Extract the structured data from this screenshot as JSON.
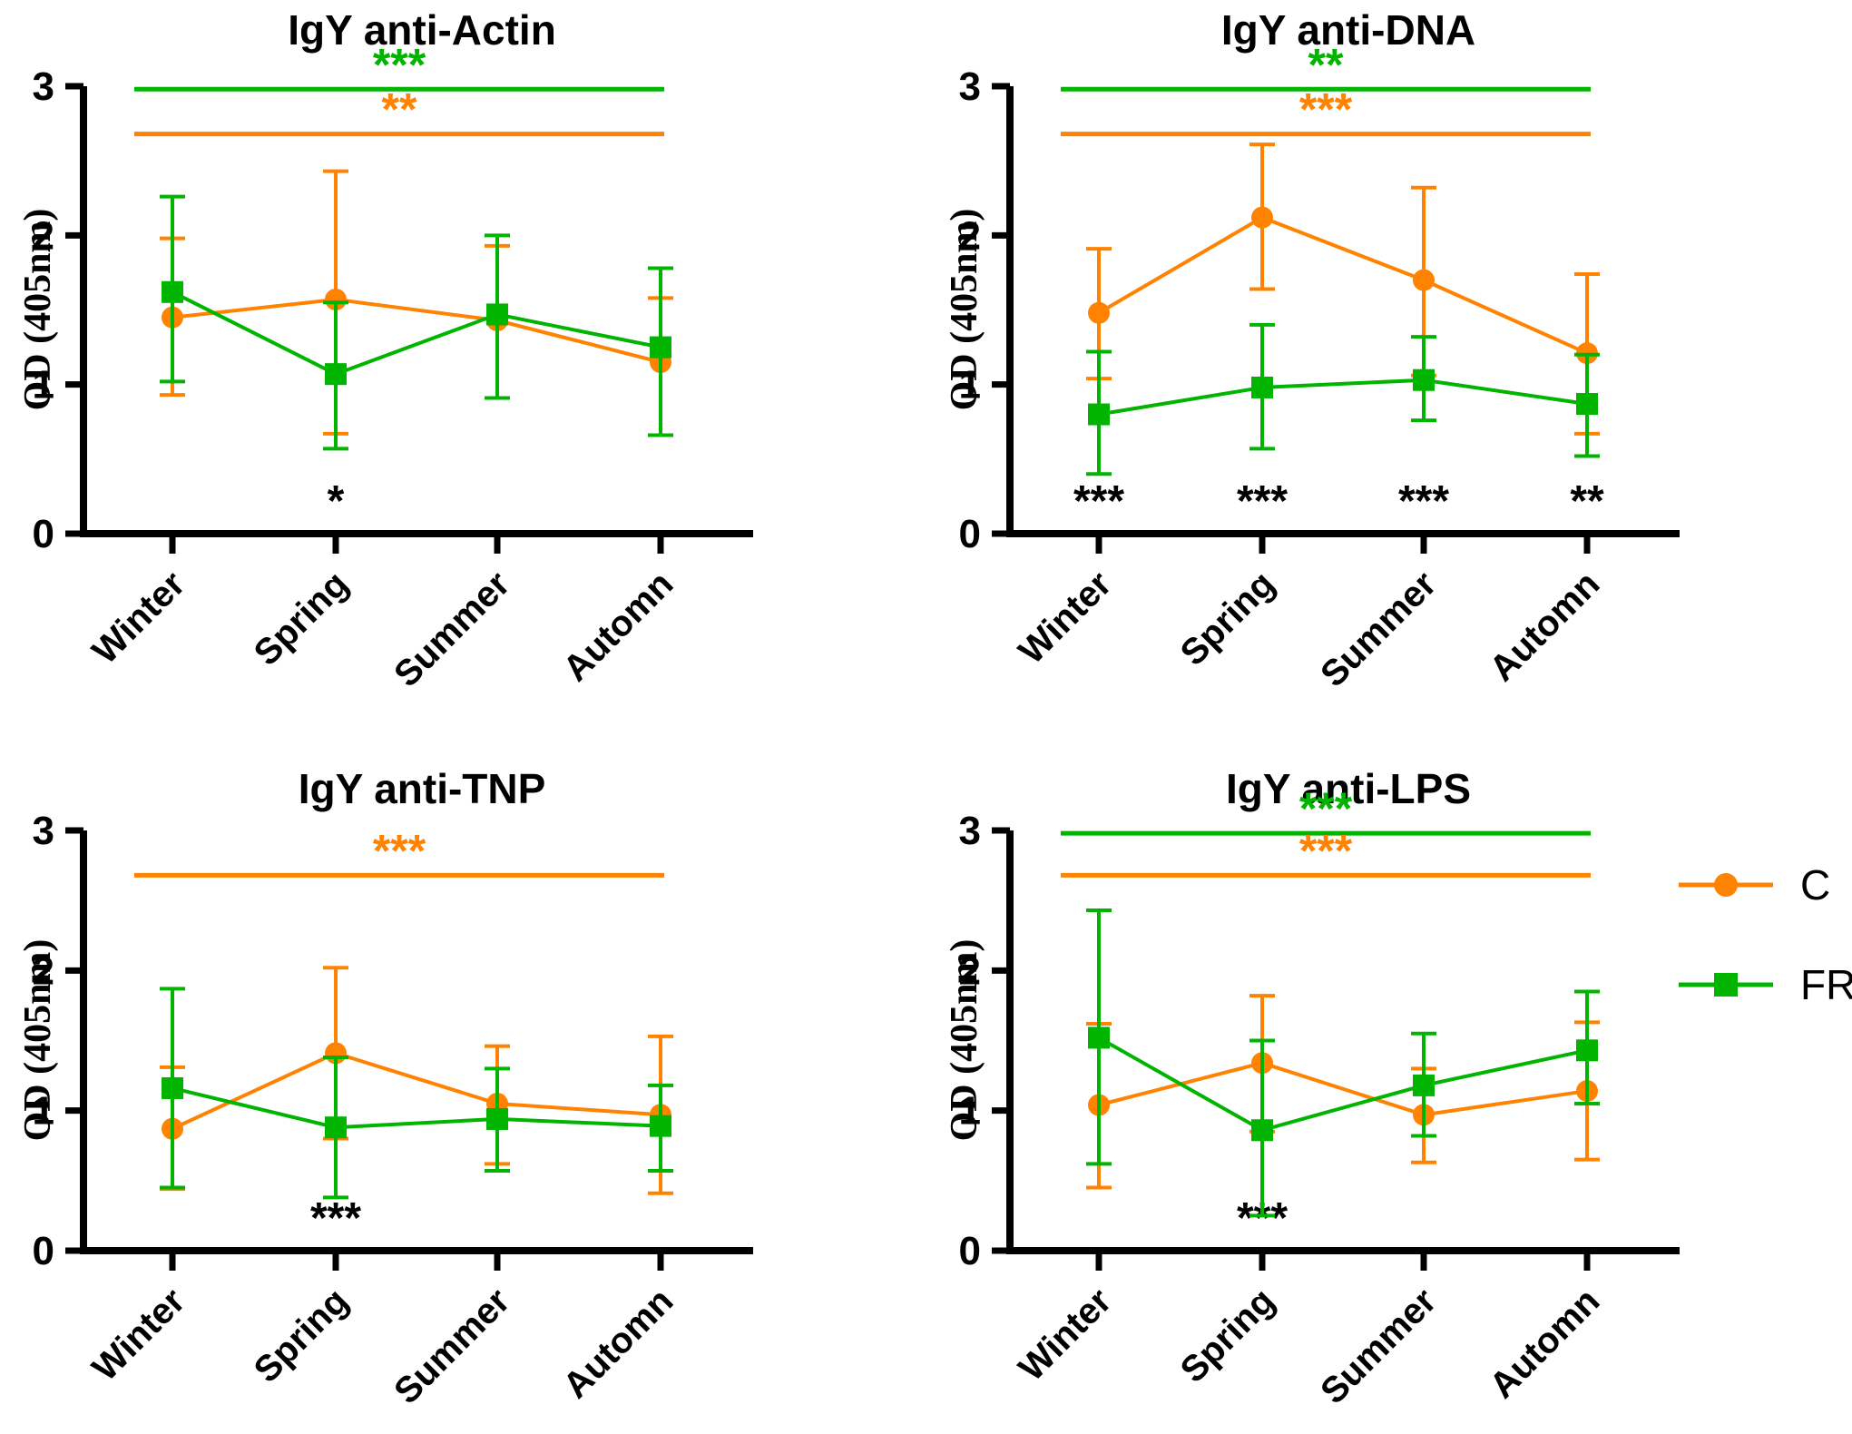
{
  "figure": {
    "background": "#ffffff",
    "accent_orange": "#FF8200",
    "accent_green": "#00B400",
    "legend": {
      "items": [
        {
          "label": "C",
          "color": "#FF8200",
          "marker": "circle"
        },
        {
          "label": "FR",
          "color": "#00B400",
          "marker": "square"
        }
      ]
    }
  },
  "chart_data": [
    {
      "type": "line",
      "title": "IgY anti-Actin",
      "ylabel": "OD (405nm)",
      "ylim": [
        0,
        3
      ],
      "yticks": [
        0,
        1,
        2,
        3
      ],
      "categories": [
        "Winter",
        "Spring",
        "Summer",
        "Automn"
      ],
      "series": [
        {
          "name": "C",
          "color": "#FF8200",
          "marker": "circle",
          "values": [
            1.45,
            1.57,
            1.43,
            1.15
          ],
          "err_lo": [
            0.93,
            0.67,
            0.91,
            0.66
          ],
          "err_hi": [
            1.98,
            2.43,
            1.93,
            1.58
          ]
        },
        {
          "name": "FR",
          "color": "#00B400",
          "marker": "square",
          "values": [
            1.62,
            1.07,
            1.47,
            1.25
          ],
          "err_lo": [
            1.02,
            0.57,
            0.91,
            0.66
          ],
          "err_hi": [
            2.26,
            1.55,
            2.0,
            1.78
          ]
        }
      ],
      "sig_lines": [
        {
          "color": "#00B400",
          "label": "***",
          "y": 2.98
        },
        {
          "color": "#FF8200",
          "label": "**",
          "y": 2.68
        }
      ],
      "point_marks": [
        {
          "category": "Spring",
          "label": "*"
        }
      ]
    },
    {
      "type": "line",
      "title": "IgY anti-DNA",
      "ylabel": "OD (405nm)",
      "ylim": [
        0,
        3
      ],
      "yticks": [
        0,
        1,
        2,
        3
      ],
      "categories": [
        "Winter",
        "Spring",
        "Summer",
        "Automn"
      ],
      "series": [
        {
          "name": "C",
          "color": "#FF8200",
          "marker": "circle",
          "values": [
            1.48,
            2.12,
            1.7,
            1.21
          ],
          "err_lo": [
            1.04,
            1.64,
            1.06,
            0.67
          ],
          "err_hi": [
            1.91,
            2.61,
            2.32,
            1.74
          ]
        },
        {
          "name": "FR",
          "color": "#00B400",
          "marker": "square",
          "values": [
            0.8,
            0.98,
            1.03,
            0.87
          ],
          "err_lo": [
            0.4,
            0.57,
            0.76,
            0.52
          ],
          "err_hi": [
            1.22,
            1.4,
            1.32,
            1.2
          ]
        }
      ],
      "sig_lines": [
        {
          "color": "#00B400",
          "label": "**",
          "y": 2.98
        },
        {
          "color": "#FF8200",
          "label": "***",
          "y": 2.68
        }
      ],
      "point_marks": [
        {
          "category": "Winter",
          "label": "***"
        },
        {
          "category": "Spring",
          "label": "***"
        },
        {
          "category": "Summer",
          "label": "***"
        },
        {
          "category": "Automn",
          "label": "**"
        }
      ]
    },
    {
      "type": "line",
      "title": "IgY anti-TNP",
      "ylabel": "OD (405nm)",
      "ylim": [
        0,
        3
      ],
      "yticks": [
        0,
        1,
        2,
        3
      ],
      "categories": [
        "Winter",
        "Spring",
        "Summer",
        "Automn"
      ],
      "series": [
        {
          "name": "C",
          "color": "#FF8200",
          "marker": "circle",
          "values": [
            0.87,
            1.41,
            1.05,
            0.97
          ],
          "err_lo": [
            0.44,
            0.8,
            0.62,
            0.41
          ],
          "err_hi": [
            1.31,
            2.02,
            1.46,
            1.53
          ]
        },
        {
          "name": "FR",
          "color": "#00B400",
          "marker": "square",
          "values": [
            1.16,
            0.88,
            0.94,
            0.89
          ],
          "err_lo": [
            0.45,
            0.38,
            0.57,
            0.57
          ],
          "err_hi": [
            1.87,
            1.38,
            1.3,
            1.18
          ]
        }
      ],
      "sig_lines": [
        {
          "color": "#FF8200",
          "label": "***",
          "y": 2.68
        }
      ],
      "point_marks": [
        {
          "category": "Spring",
          "label": "***"
        }
      ]
    },
    {
      "type": "line",
      "title": "IgY anti-LPS",
      "ylabel": "OD (405nm)",
      "ylim": [
        0,
        3
      ],
      "yticks": [
        0,
        1,
        2,
        3
      ],
      "categories": [
        "Winter",
        "Spring",
        "Summer",
        "Automn"
      ],
      "series": [
        {
          "name": "C",
          "color": "#FF8200",
          "marker": "circle",
          "values": [
            1.04,
            1.34,
            0.97,
            1.14
          ],
          "err_lo": [
            0.45,
            0.85,
            0.63,
            0.65
          ],
          "err_hi": [
            1.62,
            1.82,
            1.3,
            1.63
          ]
        },
        {
          "name": "FR",
          "color": "#00B400",
          "marker": "square",
          "values": [
            1.52,
            0.86,
            1.18,
            1.43
          ],
          "err_lo": [
            0.62,
            0.25,
            0.82,
            1.05
          ],
          "err_hi": [
            2.43,
            1.5,
            1.55,
            1.85
          ]
        }
      ],
      "sig_lines": [
        {
          "color": "#00B400",
          "label": "***",
          "y": 2.98
        },
        {
          "color": "#FF8200",
          "label": "***",
          "y": 2.68
        }
      ],
      "point_marks": [
        {
          "category": "Spring",
          "label": "***"
        }
      ]
    }
  ]
}
